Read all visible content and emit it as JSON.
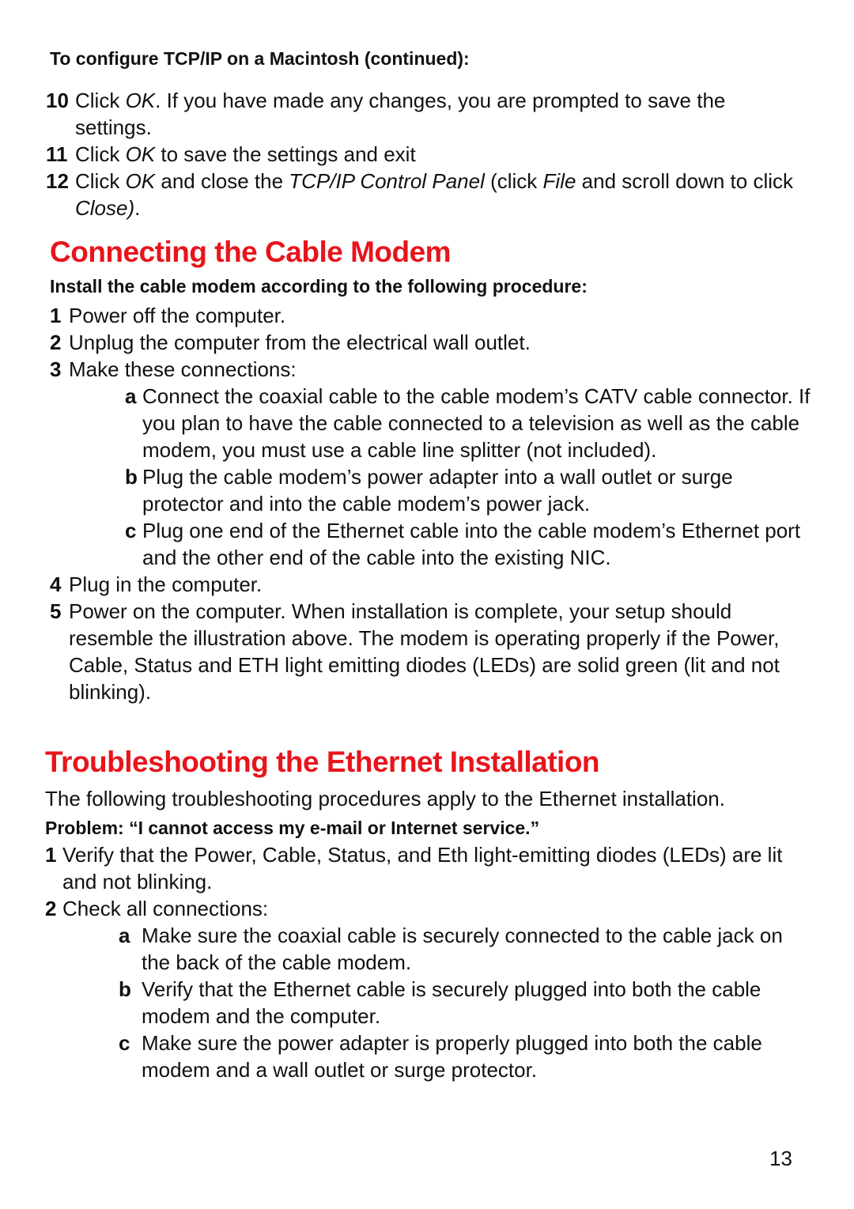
{
  "header": {
    "title": "To configure TCP/IP on a Macintosh (continued):"
  },
  "steps_continued": [
    {
      "number": "10",
      "text": [
        "Click ",
        "OK",
        ". If you have made any changes, you are prompted to save the settings."
      ]
    },
    {
      "number": "11",
      "text": [
        "Click ",
        "OK",
        " to save the settings and exit"
      ]
    },
    {
      "number": "12",
      "text": [
        "Click ",
        "OK",
        " and close the ",
        "TCP/IP Control Panel",
        " (click ",
        "File",
        " and scroll down to click ",
        "Close)",
        "."
      ]
    }
  ],
  "section1": {
    "title": "Connecting the Cable Modem",
    "intro": "Install the cable modem according to the following procedure:",
    "steps": [
      {
        "number": "1",
        "text": [
          "Power off the computer."
        ]
      },
      {
        "number": "2",
        "text": [
          "Unplug the computer from the electrical wall outlet."
        ]
      },
      {
        "number": "3",
        "text": [
          "Make these connections:"
        ],
        "substeps": [
          {
            "letter": "a",
            "text": [
              "Connect the coaxial cable to the cable modem’s CATV cable connector. If you plan to have the cable connected to a television as well as the cable modem, you must use a cable line splitter (not included)."
            ]
          },
          {
            "letter": "b",
            "text": [
              "Plug the cable modem’s power adapter into a wall outlet or surge protector and into the cable modem’s power jack."
            ]
          },
          {
            "letter": "c",
            "text": [
              "Plug one end of the Ethernet cable into the cable modem’s Ethernet port and the other end of the cable into the existing NIC."
            ]
          }
        ]
      },
      {
        "number": "4",
        "text": [
          "Plug in the computer."
        ]
      },
      {
        "number": "5",
        "text": [
          "Power on the computer. When installation is complete, your setup should resemble the illustration above. The modem is operating properly if the Power, Cable, Status and ETH light emitting diodes (LEDs) are solid green (lit and not blinking)."
        ]
      }
    ]
  },
  "section2": {
    "title": "Troubleshooting the Ethernet Installation",
    "intro": "The following troubleshooting procedures apply to the Ethernet installation.",
    "problem": "Problem: “I cannot access my e-mail or Internet service.”",
    "steps": [
      {
        "number": "1",
        "text": [
          "Verify that the Power, Cable, Status, and Eth light-emitting diodes (LEDs) are lit and not blinking."
        ]
      },
      {
        "number": "2",
        "text": [
          "Check all connections:"
        ],
        "substeps": [
          {
            "letter": "a",
            "text": [
              "Make sure the coaxial cable is securely connected to the cable jack on the back of the cable modem."
            ]
          },
          {
            "letter": "b",
            "text": [
              "Verify that the Ethernet cable is securely plugged into both the cable modem and the computer."
            ]
          },
          {
            "letter": "c",
            "text": [
              "Make sure the power adapter is properly plugged into both the cable modem and a wall outlet or surge protector."
            ]
          }
        ]
      }
    ]
  },
  "page_number": "13"
}
